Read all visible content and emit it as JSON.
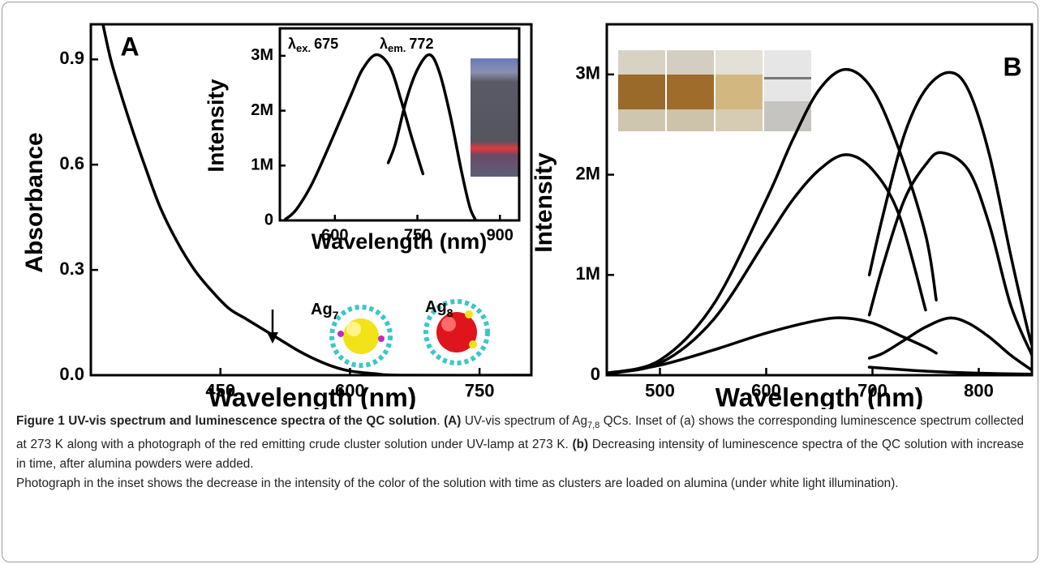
{
  "chart_data": [
    {
      "type": "line",
      "panel_label": "A",
      "x_label": "Wavelength (nm)",
      "y_label": "Absorbance",
      "xlim": [
        300,
        810
      ],
      "ylim": [
        0,
        1.0
      ],
      "xticks": [
        450,
        600,
        750
      ],
      "yticks": [
        {
          "value": 0,
          "label": "0.0"
        },
        0.3,
        0.6,
        0.9
      ],
      "molecule_labels": [
        {
          "text": "Ag",
          "sub": "7"
        },
        {
          "text": "Ag",
          "sub": "8"
        }
      ],
      "series": [
        {
          "color": "#000000",
          "x": [
            314,
            323,
            335,
            348,
            362,
            380,
            400,
            420,
            440,
            460,
            480,
            500,
            520,
            540,
            560,
            580,
            600,
            630,
            660,
            810
          ],
          "values": [
            1.0,
            0.9,
            0.8,
            0.7,
            0.6,
            0.48,
            0.38,
            0.3,
            0.24,
            0.19,
            0.16,
            0.13,
            0.1,
            0.07,
            0.045,
            0.025,
            0.012,
            0.004,
            0.0,
            0.0
          ]
        }
      ]
    },
    {
      "type": "line",
      "x_label": "Wavelength (nm)",
      "y_label": "Intensity",
      "xlim": [
        500,
        935
      ],
      "ylim": [
        0,
        3500000
      ],
      "xticks": [
        600,
        750,
        900
      ],
      "yticks": [
        0,
        {
          "value": 1000000,
          "label": "1M"
        },
        {
          "value": 2000000,
          "label": "2M"
        },
        {
          "value": 3000000,
          "label": "3M"
        }
      ],
      "peak_labels": [
        {
          "symbol": "λ",
          "sub": "ex.",
          "value": "675"
        },
        {
          "symbol": "λ",
          "sub": "em.",
          "value": "772"
        }
      ],
      "series": [
        {
          "color": "#000000",
          "x": [
            510,
            530,
            560,
            600,
            630,
            650,
            675,
            700,
            720,
            740,
            760
          ],
          "values": [
            20000,
            200000,
            700000,
            1600000,
            2300000,
            2750000,
            3020000,
            2800000,
            2200000,
            1500000,
            850000
          ]
        },
        {
          "color": "#000000",
          "x": [
            697,
            710,
            730,
            750,
            772,
            790,
            810,
            830,
            845,
            855
          ],
          "values": [
            1050000,
            1400000,
            2200000,
            2750000,
            3020000,
            2700000,
            1900000,
            900000,
            250000,
            20000
          ]
        }
      ]
    },
    {
      "type": "line",
      "panel_label": "B",
      "x_label": "Wavelength (nm)",
      "y_label": "Intensity",
      "xlim": [
        450,
        850
      ],
      "ylim": [
        0,
        3500000
      ],
      "xticks": [
        500,
        600,
        700,
        800
      ],
      "yticks": [
        0,
        {
          "value": 1000000,
          "label": "1M"
        },
        {
          "value": 2000000,
          "label": "2M"
        },
        {
          "value": 3000000,
          "label": "3M"
        }
      ],
      "series": [
        {
          "color": "#000000",
          "x": [
            450,
            500,
            550,
            600,
            625,
            650,
            675,
            700,
            725,
            750,
            760
          ],
          "values": [
            20000,
            150000,
            700000,
            1750000,
            2350000,
            2850000,
            3050000,
            2850000,
            2250000,
            1400000,
            750000
          ]
        },
        {
          "color": "#000000",
          "x": [
            450,
            500,
            550,
            600,
            625,
            650,
            675,
            700,
            725,
            750
          ],
          "values": [
            20000,
            120000,
            550000,
            1350000,
            1750000,
            2050000,
            2200000,
            2050000,
            1600000,
            650000
          ]
        },
        {
          "color": "#000000",
          "x": [
            450,
            500,
            550,
            600,
            650,
            675,
            700,
            725,
            750,
            760
          ],
          "values": [
            10000,
            100000,
            250000,
            420000,
            550000,
            570000,
            520000,
            400000,
            280000,
            220000
          ]
        },
        {
          "color": "#000000",
          "x": [
            697,
            710,
            730,
            750,
            772,
            790,
            810,
            830,
            845,
            850
          ],
          "values": [
            1000000,
            1600000,
            2400000,
            2850000,
            3020000,
            2850000,
            2200000,
            1200000,
            500000,
            300000
          ]
        },
        {
          "color": "#000000",
          "x": [
            697,
            710,
            730,
            750,
            765,
            790,
            810,
            830,
            850
          ],
          "values": [
            600000,
            1100000,
            1750000,
            2100000,
            2220000,
            2050000,
            1500000,
            700000,
            200000
          ]
        },
        {
          "color": "#000000",
          "x": [
            697,
            710,
            730,
            750,
            772,
            790,
            810,
            830,
            850
          ],
          "values": [
            170000,
            220000,
            350000,
            480000,
            570000,
            520000,
            380000,
            200000,
            50000
          ]
        },
        {
          "color": "#000000",
          "x": [
            697,
            750,
            800,
            850
          ],
          "values": [
            80000,
            40000,
            20000,
            10000
          ]
        }
      ]
    }
  ],
  "caption": {
    "parts": [
      "Figure 1 UV-vis spectrum and luminescence spectra of the QC solution",
      ". ",
      "(A)",
      " UV-vis spectrum of Ag",
      "7,8",
      " QCs. Inset of (a) shows the corresponding luminescence spectrum collected at 273 K along with a photograph of the red emitting crude cluster solution under UV-lamp at 273 K. ",
      "(b)",
      " Decreasing intensity of luminescence spectra of the QC solution with increase in time, after alumina powders were added.",
      "Photograph in the inset shows the decrease in the intensity of the color of the solution with time as clusters are loaded on alumina (under white light illumination)."
    ]
  }
}
